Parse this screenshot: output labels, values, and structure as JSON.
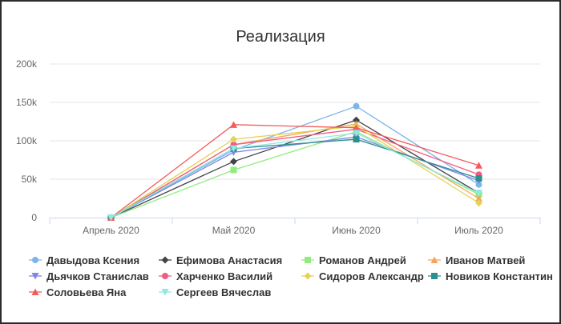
{
  "chart_data": {
    "type": "line",
    "title": "Реализация",
    "xlabel": "",
    "ylabel": "",
    "categories": [
      "Апрель 2020",
      "Май 2020",
      "Июнь 2020",
      "Июль 2020"
    ],
    "y_ticks": [
      0,
      50000,
      100000,
      150000,
      200000
    ],
    "y_tick_labels": [
      "0",
      "50k",
      "100k",
      "150k",
      "200k"
    ],
    "ylim": [
      0,
      200000
    ],
    "grid": true,
    "legend_position": "bottom",
    "series": [
      {
        "name": "Давыдова Ксения",
        "color": "#7cb5ec",
        "marker": "circle",
        "values": [
          0,
          88000,
          145000,
          43000
        ]
      },
      {
        "name": "Ефимова Анастасия",
        "color": "#434348",
        "marker": "diamond",
        "values": [
          0,
          73000,
          127000,
          32000
        ]
      },
      {
        "name": "Романов Андрей",
        "color": "#90ed7d",
        "marker": "square",
        "values": [
          0,
          62000,
          112000,
          30000
        ]
      },
      {
        "name": "Иванов Матвей",
        "color": "#f7a35c",
        "marker": "triangle",
        "values": [
          0,
          95000,
          122000,
          25000
        ]
      },
      {
        "name": "Дьячков Станислав",
        "color": "#8085e9",
        "marker": "triangle-down",
        "values": [
          0,
          85000,
          105000,
          48000
        ]
      },
      {
        "name": "Харченко Василий",
        "color": "#f15c80",
        "marker": "circle",
        "values": [
          0,
          95000,
          115000,
          56000
        ]
      },
      {
        "name": "Сидоров Александр",
        "color": "#e4d354",
        "marker": "diamond",
        "values": [
          0,
          102000,
          119000,
          19000
        ]
      },
      {
        "name": "Новиков Константин",
        "color": "#2b908f",
        "marker": "square",
        "values": [
          0,
          90000,
          102000,
          51000
        ]
      },
      {
        "name": "Соловьева Яна",
        "color": "#f45b5b",
        "marker": "triangle",
        "values": [
          0,
          121000,
          117000,
          68000
        ]
      },
      {
        "name": "Сергеев Вячеслав",
        "color": "#91e8e1",
        "marker": "triangle-down",
        "values": [
          0,
          90000,
          110000,
          32000
        ]
      }
    ]
  }
}
